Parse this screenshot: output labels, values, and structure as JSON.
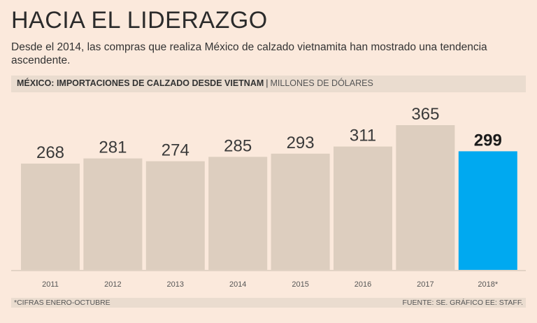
{
  "header": {
    "title": "HACIA EL LIDERAZGO",
    "subtitle": "Desde el 2014, las compras que realiza México de calzado vietnamita han mostrado una tendencia ascendente."
  },
  "band": {
    "title": "MÉXICO: IMPORTACIONES DE CALZADO DESDE VIETNAM",
    "separator": "|",
    "unit": "MILLONES DE DÓLARES"
  },
  "footer": {
    "note": "*CIFRAS ENERO-OCTUBRE",
    "source": "FUENTE: SE. GRÁFICO EE: STAFF."
  },
  "colors": {
    "bar": "#ddcebf",
    "highlight": "#00a9f0",
    "background": "#fbe9dc"
  },
  "chart_data": {
    "type": "bar",
    "title": "MÉXICO: IMPORTACIONES DE CALZADO DESDE VIETNAM",
    "ylabel": "MILLONES DE DÓLARES",
    "xlabel": "",
    "categories": [
      "2011",
      "2012",
      "2013",
      "2014",
      "2015",
      "2016",
      "2017",
      "2018*"
    ],
    "values": [
      268,
      281,
      274,
      285,
      293,
      311,
      365,
      299
    ],
    "highlight_index": 7,
    "ylim": [
      0,
      420
    ],
    "grid": false
  }
}
